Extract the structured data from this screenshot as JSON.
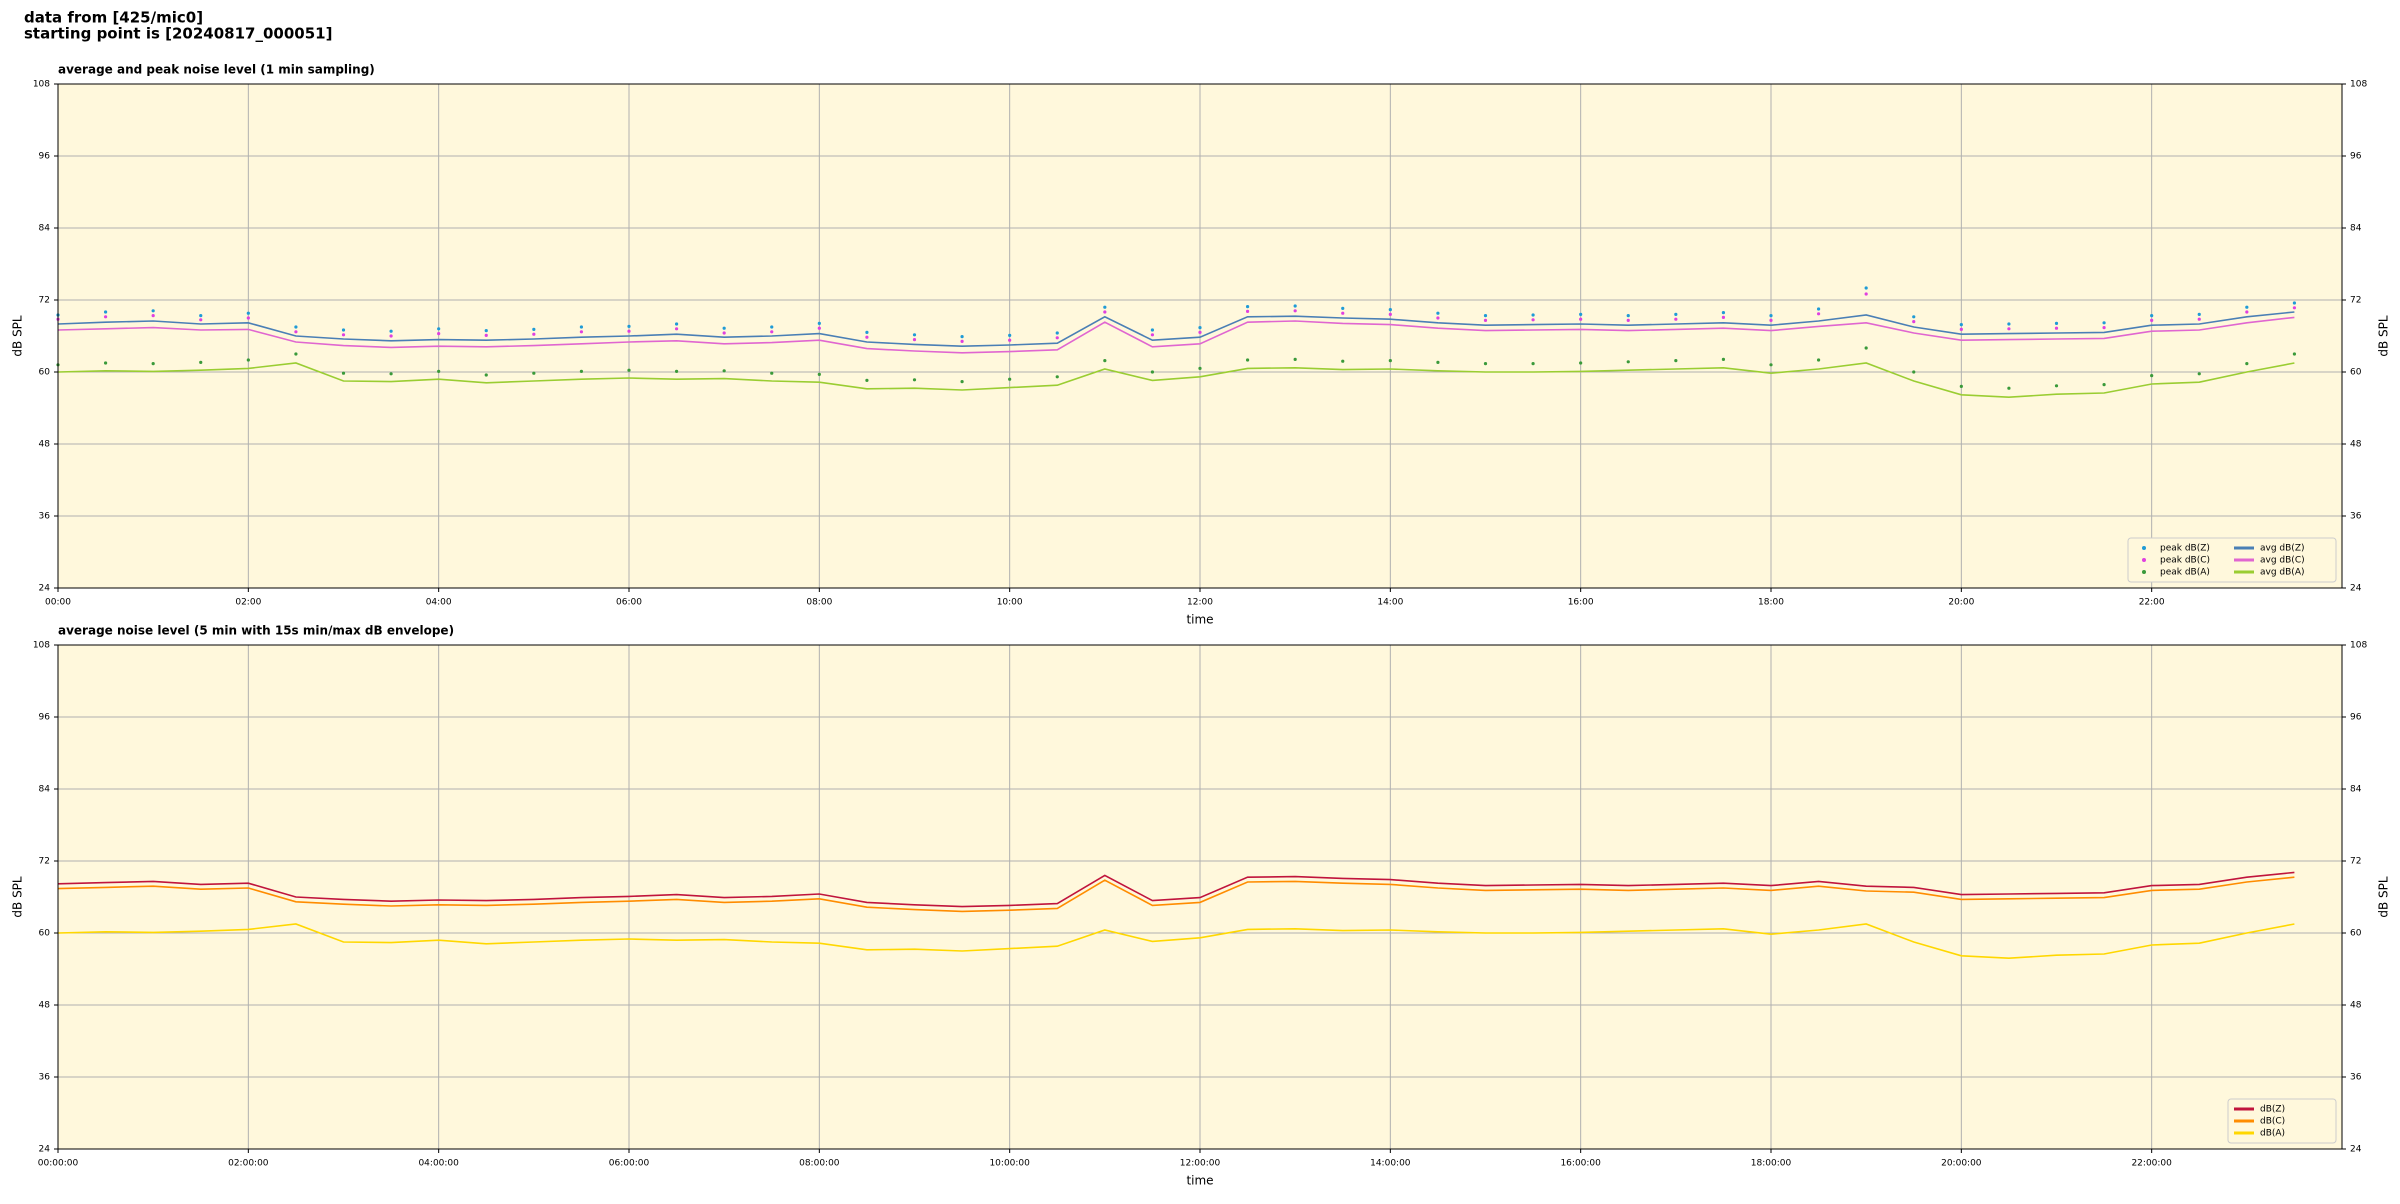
{
  "header": {
    "line1": "data from [425/mic0]",
    "line2": "starting point is [20240817_000051]"
  },
  "chart_data": [
    {
      "type": "line",
      "title": "average and peak noise level (1 min sampling)",
      "xlabel": "time",
      "ylabel": "dB SPL",
      "x": [
        0,
        0.5,
        1,
        1.5,
        2,
        2.5,
        3,
        3.5,
        4,
        4.5,
        5,
        5.5,
        6,
        6.5,
        7,
        7.5,
        8,
        8.5,
        9,
        9.5,
        10,
        10.5,
        11,
        11.5,
        12,
        12.5,
        13,
        13.5,
        14,
        14.5,
        15,
        15.5,
        16,
        16.5,
        17,
        17.5,
        18,
        18.5,
        19,
        19.5,
        20,
        20.5,
        21,
        21.5,
        22,
        22.5,
        23,
        23.5
      ],
      "xlim": [
        0,
        24
      ],
      "xticks": [
        {
          "value": 0,
          "label": "00:00"
        },
        {
          "value": 2,
          "label": "02:00"
        },
        {
          "value": 4,
          "label": "04:00"
        },
        {
          "value": 6,
          "label": "06:00"
        },
        {
          "value": 8,
          "label": "08:00"
        },
        {
          "value": 10,
          "label": "10:00"
        },
        {
          "value": 12,
          "label": "12:00"
        },
        {
          "value": 14,
          "label": "14:00"
        },
        {
          "value": 16,
          "label": "16:00"
        },
        {
          "value": 18,
          "label": "18:00"
        },
        {
          "value": 20,
          "label": "20:00"
        },
        {
          "value": 22,
          "label": "22:00"
        }
      ],
      "ylim": [
        24,
        108
      ],
      "yticks": [
        24,
        36,
        48,
        60,
        72,
        84,
        96,
        108
      ],
      "grid": true,
      "legend": "lower right",
      "series": [
        {
          "name": "peak dB(Z)",
          "color": "#1f9bd6",
          "marker": "dot",
          "values": [
            69.5,
            70,
            70.2,
            69.4,
            69.8,
            67.5,
            67,
            66.8,
            67.2,
            66.9,
            67.1,
            67.5,
            67.6,
            68,
            67.3,
            67.5,
            68.1,
            66.6,
            66.2,
            65.9,
            66.1,
            66.5,
            70.8,
            67,
            67.4,
            70.9,
            71,
            70.6,
            70.4,
            69.8,
            69.4,
            69.5,
            69.6,
            69.4,
            69.6,
            69.9,
            69.4,
            70.5,
            74,
            69.2,
            67.9,
            68,
            68.1,
            68.2,
            69.4,
            69.6,
            70.8,
            71.5
          ]
        },
        {
          "name": "peak dB(C)",
          "color": "#e040e0",
          "marker": "dot",
          "values": [
            68.8,
            69.2,
            69.4,
            68.7,
            69,
            66.7,
            66.2,
            66,
            66.4,
            66.1,
            66.3,
            66.7,
            66.8,
            67.2,
            66.5,
            66.7,
            67.3,
            65.8,
            65.4,
            65.1,
            65.3,
            65.7,
            70,
            66.2,
            66.6,
            70.1,
            70.2,
            69.8,
            69.6,
            69,
            68.6,
            68.7,
            68.8,
            68.6,
            68.8,
            69.1,
            68.6,
            69.7,
            73,
            68.4,
            67.1,
            67.2,
            67.3,
            67.4,
            68.6,
            68.8,
            70,
            70.7
          ]
        },
        {
          "name": "peak dB(A)",
          "color": "#3a9a3a",
          "marker": "dot",
          "values": [
            61.2,
            61.5,
            61.4,
            61.6,
            62,
            63,
            59.8,
            59.7,
            60.1,
            59.5,
            59.8,
            60.1,
            60.3,
            60.1,
            60.2,
            59.8,
            59.6,
            58.6,
            58.7,
            58.4,
            58.8,
            59.2,
            61.9,
            60,
            60.6,
            62,
            62.1,
            61.8,
            61.9,
            61.6,
            61.4,
            61.4,
            61.5,
            61.7,
            61.9,
            62.1,
            61.2,
            62,
            64,
            60,
            57.6,
            57.3,
            57.7,
            57.9,
            59.4,
            59.7,
            61.4,
            63
          ]
        },
        {
          "name": "avg dB(Z)",
          "color": "#4a7fb5",
          "marker": "line",
          "values": [
            68,
            68.3,
            68.5,
            68,
            68.2,
            66,
            65.5,
            65.2,
            65.4,
            65.3,
            65.5,
            65.8,
            66,
            66.3,
            65.8,
            66,
            66.4,
            65,
            64.6,
            64.3,
            64.5,
            64.8,
            69.2,
            65.3,
            65.8,
            69.2,
            69.3,
            69,
            68.8,
            68.2,
            67.8,
            67.9,
            68,
            67.8,
            68,
            68.2,
            67.8,
            68.5,
            69.5,
            67.5,
            66.3,
            66.4,
            66.5,
            66.6,
            67.8,
            68,
            69.2,
            70
          ]
        },
        {
          "name": "avg dB(C)",
          "color": "#e066d0",
          "marker": "line",
          "values": [
            67,
            67.2,
            67.4,
            67,
            67.1,
            65,
            64.4,
            64.1,
            64.3,
            64.2,
            64.4,
            64.7,
            65,
            65.2,
            64.7,
            64.9,
            65.3,
            63.9,
            63.5,
            63.2,
            63.4,
            63.7,
            68.3,
            64.2,
            64.7,
            68.3,
            68.5,
            68.1,
            67.9,
            67.3,
            66.9,
            67,
            67.1,
            66.9,
            67.1,
            67.3,
            66.9,
            67.6,
            68.2,
            66.5,
            65.3,
            65.4,
            65.5,
            65.6,
            66.8,
            67,
            68.2,
            69.1
          ]
        },
        {
          "name": "avg dB(A)",
          "color": "#9acd32",
          "marker": "line",
          "values": [
            60,
            60.2,
            60.1,
            60.3,
            60.6,
            61.5,
            58.5,
            58.4,
            58.8,
            58.2,
            58.5,
            58.8,
            59,
            58.8,
            58.9,
            58.5,
            58.3,
            57.2,
            57.3,
            57,
            57.4,
            57.8,
            60.5,
            58.6,
            59.2,
            60.6,
            60.7,
            60.4,
            60.5,
            60.2,
            60,
            60,
            60.1,
            60.3,
            60.5,
            60.7,
            59.8,
            60.5,
            61.5,
            58.5,
            56.2,
            55.8,
            56.3,
            56.5,
            58,
            58.3,
            60,
            61.5
          ]
        }
      ]
    },
    {
      "type": "line",
      "title": "average noise level (5 min with 15s min/max dB envelope)",
      "xlabel": "time",
      "ylabel": "dB SPL",
      "x": [
        0,
        0.5,
        1,
        1.5,
        2,
        2.5,
        3,
        3.5,
        4,
        4.5,
        5,
        5.5,
        6,
        6.5,
        7,
        7.5,
        8,
        8.5,
        9,
        9.5,
        10,
        10.5,
        11,
        11.5,
        12,
        12.5,
        13,
        13.5,
        14,
        14.5,
        15,
        15.5,
        16,
        16.5,
        17,
        17.5,
        18,
        18.5,
        19,
        19.5,
        20,
        20.5,
        21,
        21.5,
        22,
        22.5,
        23,
        23.5
      ],
      "xlim": [
        0,
        24
      ],
      "xticks": [
        {
          "value": 0,
          "label": "00:00:00"
        },
        {
          "value": 2,
          "label": "02:00:00"
        },
        {
          "value": 4,
          "label": "04:00:00"
        },
        {
          "value": 6,
          "label": "06:00:00"
        },
        {
          "value": 8,
          "label": "08:00:00"
        },
        {
          "value": 10,
          "label": "10:00:00"
        },
        {
          "value": 12,
          "label": "12:00:00"
        },
        {
          "value": 14,
          "label": "14:00:00"
        },
        {
          "value": 16,
          "label": "16:00:00"
        },
        {
          "value": 18,
          "label": "18:00:00"
        },
        {
          "value": 20,
          "label": "20:00:00"
        },
        {
          "value": 22,
          "label": "22:00:00"
        }
      ],
      "ylim": [
        24,
        108
      ],
      "yticks": [
        24,
        36,
        48,
        60,
        72,
        84,
        96,
        108
      ],
      "grid": true,
      "legend": "lower right",
      "series": [
        {
          "name": "dB(Z)",
          "color": "#c0143c",
          "marker": "line",
          "values": [
            68.2,
            68.4,
            68.6,
            68.1,
            68.3,
            66,
            65.6,
            65.3,
            65.5,
            65.4,
            65.6,
            65.9,
            66.1,
            66.4,
            65.9,
            66.1,
            66.5,
            65.1,
            64.7,
            64.4,
            64.6,
            64.9,
            69.6,
            65.4,
            65.9,
            69.3,
            69.4,
            69.1,
            68.9,
            68.3,
            67.9,
            68,
            68.1,
            67.9,
            68.1,
            68.3,
            67.9,
            68.6,
            67.8,
            67.6,
            66.4,
            66.5,
            66.6,
            66.7,
            67.9,
            68.1,
            69.3,
            70.1
          ]
        },
        {
          "name": "dB(C)",
          "color": "#ff8c00",
          "marker": "line",
          "values": [
            67.4,
            67.6,
            67.8,
            67.3,
            67.5,
            65.2,
            64.8,
            64.5,
            64.7,
            64.6,
            64.8,
            65.1,
            65.3,
            65.6,
            65.1,
            65.3,
            65.7,
            64.3,
            63.9,
            63.6,
            63.8,
            64.1,
            68.8,
            64.6,
            65.1,
            68.5,
            68.6,
            68.3,
            68.1,
            67.5,
            67.1,
            67.2,
            67.3,
            67.1,
            67.3,
            67.5,
            67.1,
            67.8,
            67,
            66.8,
            65.6,
            65.7,
            65.8,
            65.9,
            67.1,
            67.3,
            68.5,
            69.3
          ]
        },
        {
          "name": "dB(A)",
          "color": "#ffd700",
          "marker": "line",
          "values": [
            60,
            60.2,
            60.1,
            60.3,
            60.6,
            61.5,
            58.5,
            58.4,
            58.8,
            58.2,
            58.5,
            58.8,
            59,
            58.8,
            58.9,
            58.5,
            58.3,
            57.2,
            57.3,
            57,
            57.4,
            57.8,
            60.5,
            58.6,
            59.2,
            60.6,
            60.7,
            60.4,
            60.5,
            60.2,
            60,
            60,
            60.1,
            60.3,
            60.5,
            60.7,
            59.8,
            60.5,
            61.5,
            58.5,
            56.2,
            55.8,
            56.3,
            56.5,
            58,
            58.3,
            60,
            61.5
          ]
        }
      ]
    }
  ]
}
